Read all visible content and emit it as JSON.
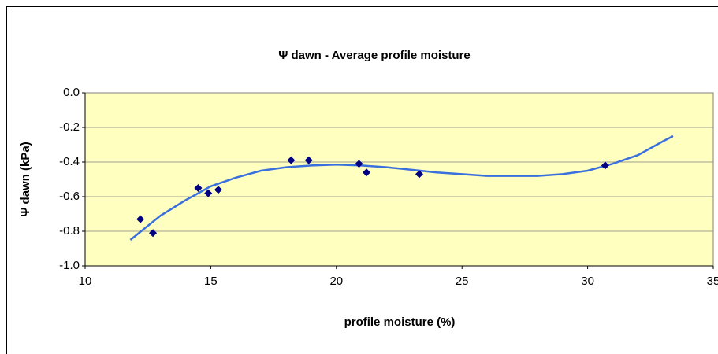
{
  "chart_data": {
    "type": "scatter",
    "title": "Ψ dawn - Average profile moisture",
    "x_label": "profile moisture (%)",
    "y_label": "Ψ dawn (kPa)",
    "xlim": [
      10,
      35
    ],
    "xticks": [
      10,
      15,
      20,
      25,
      30,
      35
    ],
    "ylim": [
      -1.0,
      0.0
    ],
    "yticks": [
      {
        "value": 0.0,
        "label": "0.0"
      },
      -0.2,
      -0.4,
      -0.6,
      -0.8,
      {
        "value": -1.0,
        "label": "-1.0"
      }
    ],
    "grid": true,
    "points": {
      "color": "#000080",
      "x": [
        12.2,
        12.7,
        14.5,
        14.9,
        15.3,
        18.2,
        18.9,
        20.9,
        21.2,
        23.3,
        30.7
      ],
      "y": [
        -0.73,
        -0.81,
        -0.55,
        -0.58,
        -0.56,
        -0.39,
        -0.39,
        -0.41,
        -0.46,
        -0.47,
        -0.42
      ]
    },
    "trendline": {
      "color": "#3a6fde",
      "x": [
        11.8,
        13,
        14,
        15,
        16,
        17,
        18,
        19,
        20,
        21,
        22,
        23,
        24,
        25,
        26,
        27,
        28,
        29,
        30,
        31,
        32,
        33,
        33.4
      ],
      "y": [
        -0.85,
        -0.71,
        -0.62,
        -0.54,
        -0.49,
        -0.45,
        -0.43,
        -0.42,
        -0.415,
        -0.42,
        -0.43,
        -0.445,
        -0.46,
        -0.47,
        -0.48,
        -0.48,
        -0.48,
        -0.47,
        -0.45,
        -0.41,
        -0.36,
        -0.28,
        -0.25
      ]
    }
  }
}
